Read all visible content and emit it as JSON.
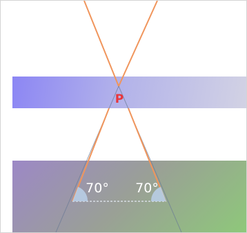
{
  "point_label": "P",
  "angles": {
    "left": "70°",
    "right": "70°"
  },
  "colors": {
    "ray": "#f0955c",
    "point_label": "#e8363c",
    "angle_fill": "#b8cde6",
    "dashed": "#d8dde4",
    "inner_line": "#6a7a96",
    "angle_text": "#ffffff"
  }
}
